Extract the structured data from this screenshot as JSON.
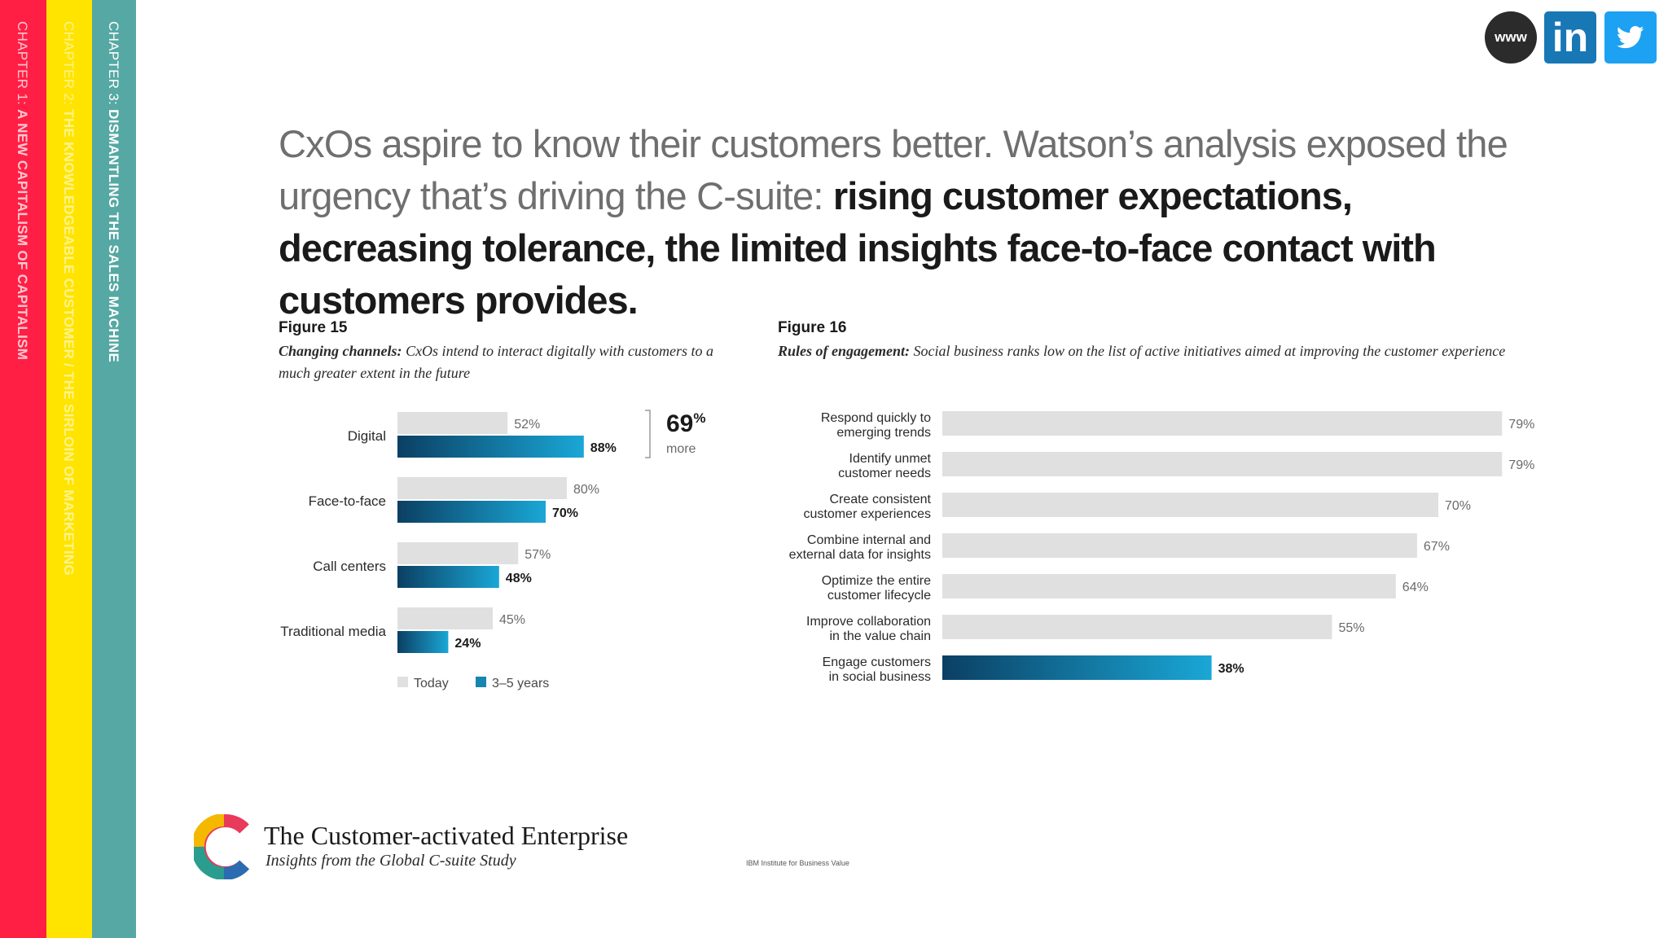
{
  "sidebar": {
    "chapter1_prefix": "CHAPTER 1: ",
    "chapter1_title": "A NEW CAPITALISM OF CAPITALISM",
    "chapter2_prefix": "CHAPTER 2: ",
    "chapter2_title": "THE KNOWLEDGEABLE CUSTOMER / THE SIRLOIN OF MARKETING",
    "chapter3_prefix": "CHAPTER 3: ",
    "chapter3_title": "DISMANTLING THE SALES MACHINE"
  },
  "social": {
    "www_label": "www",
    "linkedin_label": "in"
  },
  "headline": {
    "plain": "CxOs aspire to know their customers better. Watson’s analysis exposed the urgency that’s driving the C-suite: ",
    "bold": "rising customer expectations, decreasing tolerance, the limited insights face-to-face contact with customers provides."
  },
  "figure15": {
    "label": "Figure 15",
    "caption_lead": "Changing channels:",
    "caption_text": " CxOs intend to interact digitally with customers to a much greater extent in the future",
    "callout_value": "69",
    "callout_unit": "%",
    "callout_text": "more"
  },
  "figure16": {
    "label": "Figure 16",
    "caption_lead": "Rules of engagement:",
    "caption_text": " Social business ranks low on the list of active initiatives aimed at improving the customer experience"
  },
  "chart_data": [
    {
      "type": "bar",
      "orientation": "horizontal",
      "title": "Figure 15",
      "categories": [
        "Digital",
        "Face-to-face",
        "Call centers",
        "Traditional media"
      ],
      "series": [
        {
          "name": "Today",
          "values": [
            52,
            80,
            57,
            45
          ],
          "labels": [
            "52%",
            "80%",
            "57%",
            "45%"
          ],
          "color": "#e0e0e0"
        },
        {
          "name": "3–5 years",
          "values": [
            88,
            70,
            48,
            24
          ],
          "labels": [
            "88%",
            "70%",
            "48%",
            "24%"
          ],
          "color": "#1685b0"
        }
      ],
      "xlim": [
        0,
        100
      ],
      "legend": [
        "Today",
        "3–5 years"
      ],
      "legend_placement": "bottom"
    },
    {
      "type": "bar",
      "orientation": "horizontal",
      "title": "Figure 16",
      "categories": [
        [
          "Respond quickly to",
          "emerging trends"
        ],
        [
          "Identify unmet",
          "customer needs"
        ],
        [
          "Create consistent",
          "customer experiences"
        ],
        [
          "Combine internal and",
          "external data for insights"
        ],
        [
          "Optimize the entire",
          "customer lifecycle"
        ],
        [
          "Improve collaboration",
          "in the value chain"
        ],
        [
          "Engage customers",
          "in social business"
        ]
      ],
      "values": [
        79,
        79,
        70,
        67,
        64,
        55,
        38
      ],
      "labels": [
        "79%",
        "79%",
        "70%",
        "67%",
        "64%",
        "55%",
        "38%"
      ],
      "highlight_index": 6,
      "xlim": [
        0,
        100
      ]
    }
  ],
  "colors": {
    "red": "#ff1f45",
    "yellow": "#ffe400",
    "teal": "#55a8a3",
    "bar_grey": "#e0e0e0",
    "bar_blue_light": "#1aa7d6",
    "bar_blue_dark": "#0b3f63"
  },
  "footer": {
    "title": "The Customer-activated Enterprise",
    "subtitle": "Insights from the Global C-suite Study",
    "publisher": "IBM Institute for Business Value"
  }
}
